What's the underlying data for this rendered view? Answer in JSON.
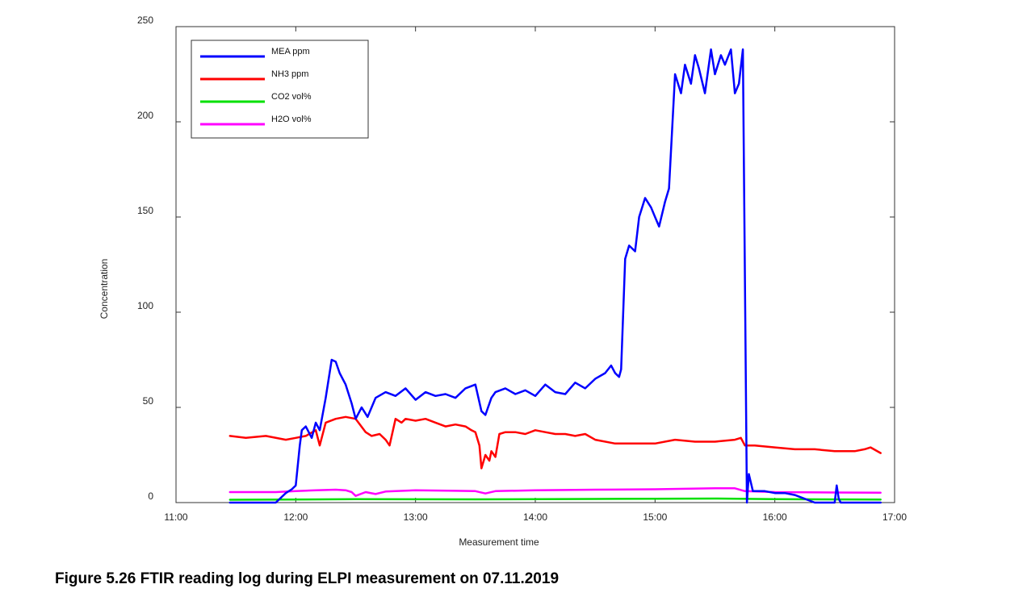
{
  "caption": "Figure 5.26 FTIR reading log during ELPI measurement on 07.11.2019",
  "chart_data": {
    "type": "line",
    "title": "",
    "xlabel": "Measurement time",
    "ylabel": "Concentration",
    "xlim": [
      "11:00",
      "17:00"
    ],
    "ylim": [
      0,
      250
    ],
    "x_ticks": [
      "11:00",
      "12:00",
      "13:00",
      "14:00",
      "15:00",
      "16:00",
      "17:00"
    ],
    "y_ticks": [
      "0",
      "50",
      "100",
      "150",
      "200",
      "250"
    ],
    "grid": false,
    "legend_position": "top-left",
    "series": [
      {
        "name": "MEA ppm",
        "color": "#0000ff",
        "x": [
          "11:27",
          "11:50",
          "11:55",
          "11:58",
          "12:00",
          "12:02",
          "12:03",
          "12:05",
          "12:08",
          "12:10",
          "12:12",
          "12:15",
          "12:18",
          "12:20",
          "12:22",
          "12:25",
          "12:28",
          "12:30",
          "12:33",
          "12:36",
          "12:40",
          "12:45",
          "12:50",
          "12:55",
          "13:00",
          "13:05",
          "13:10",
          "13:15",
          "13:20",
          "13:25",
          "13:30",
          "13:33",
          "13:35",
          "13:38",
          "13:40",
          "13:45",
          "13:50",
          "13:55",
          "14:00",
          "14:05",
          "14:10",
          "14:15",
          "14:20",
          "14:25",
          "14:30",
          "14:35",
          "14:38",
          "14:40",
          "14:42",
          "14:43",
          "14:45",
          "14:47",
          "14:50",
          "14:52",
          "14:55",
          "14:58",
          "15:00",
          "15:02",
          "15:05",
          "15:07",
          "15:10",
          "15:13",
          "15:15",
          "15:18",
          "15:20",
          "15:22",
          "15:25",
          "15:28",
          "15:30",
          "15:33",
          "15:35",
          "15:38",
          "15:40",
          "15:42",
          "15:44",
          "15:46",
          "15:47",
          "15:49",
          "15:50",
          "15:52",
          "15:55",
          "16:00",
          "16:05",
          "16:10",
          "16:15",
          "16:20",
          "16:25",
          "16:30",
          "16:31",
          "16:32",
          "16:33",
          "16:35",
          "16:40",
          "16:53"
        ],
        "y": [
          0,
          0,
          5,
          7,
          9,
          30,
          38,
          40,
          34,
          42,
          38,
          55,
          75,
          74,
          68,
          62,
          52,
          44,
          50,
          45,
          55,
          58,
          56,
          60,
          54,
          58,
          56,
          57,
          55,
          60,
          62,
          48,
          46,
          55,
          58,
          60,
          57,
          59,
          56,
          62,
          58,
          57,
          63,
          60,
          65,
          68,
          72,
          68,
          66,
          70,
          128,
          135,
          132,
          150,
          160,
          155,
          150,
          145,
          158,
          165,
          225,
          215,
          230,
          220,
          235,
          228,
          215,
          238,
          225,
          235,
          230,
          238,
          215,
          220,
          238,
          0,
          15,
          6,
          6,
          6,
          6,
          5,
          5,
          4,
          2,
          0,
          0,
          0,
          9,
          2,
          0,
          0,
          0,
          0
        ]
      },
      {
        "name": "NH3 ppm",
        "color": "#ff0000",
        "x": [
          "11:27",
          "11:35",
          "11:45",
          "11:55",
          "12:00",
          "12:05",
          "12:10",
          "12:12",
          "12:15",
          "12:20",
          "12:25",
          "12:30",
          "12:35",
          "12:38",
          "12:42",
          "12:45",
          "12:47",
          "12:50",
          "12:53",
          "12:55",
          "13:00",
          "13:05",
          "13:10",
          "13:15",
          "13:20",
          "13:25",
          "13:28",
          "13:30",
          "13:32",
          "13:33",
          "13:35",
          "13:37",
          "13:38",
          "13:40",
          "13:42",
          "13:45",
          "13:50",
          "13:55",
          "14:00",
          "14:05",
          "14:10",
          "14:15",
          "14:20",
          "14:25",
          "14:30",
          "14:40",
          "14:50",
          "15:00",
          "15:10",
          "15:20",
          "15:30",
          "15:40",
          "15:43",
          "15:45",
          "15:50",
          "16:00",
          "16:10",
          "16:20",
          "16:30",
          "16:40",
          "16:45",
          "16:48",
          "16:53"
        ],
        "y": [
          35,
          34,
          35,
          33,
          34,
          35,
          38,
          30,
          42,
          44,
          45,
          44,
          37,
          35,
          36,
          33,
          30,
          44,
          42,
          44,
          43,
          44,
          42,
          40,
          41,
          40,
          38,
          37,
          30,
          18,
          25,
          22,
          27,
          24,
          36,
          37,
          37,
          36,
          38,
          37,
          36,
          36,
          35,
          36,
          33,
          31,
          31,
          31,
          33,
          32,
          32,
          33,
          34,
          30,
          30,
          29,
          28,
          28,
          27,
          27,
          28,
          29,
          26
        ]
      },
      {
        "name": "CO2 vol%",
        "color": "#00e000",
        "x": [
          "11:27",
          "12:30",
          "13:30",
          "14:30",
          "15:00",
          "15:30",
          "16:00",
          "16:53"
        ],
        "y": [
          1.5,
          1.8,
          1.7,
          1.9,
          2.0,
          2.1,
          1.8,
          1.6
        ]
      },
      {
        "name": "H2O vol%",
        "color": "#ff00ff",
        "x": [
          "11:27",
          "11:50",
          "12:00",
          "12:10",
          "12:20",
          "12:25",
          "12:28",
          "12:30",
          "12:35",
          "12:40",
          "12:45",
          "12:50",
          "13:00",
          "13:20",
          "13:30",
          "13:35",
          "13:40",
          "14:00",
          "14:30",
          "15:00",
          "15:30",
          "15:40",
          "15:45",
          "16:00",
          "16:30",
          "16:53"
        ],
        "y": [
          5.5,
          5.5,
          6,
          6.5,
          6.8,
          6.5,
          5.5,
          3.5,
          5.5,
          4.5,
          5.8,
          6,
          6.5,
          6.2,
          6,
          4.8,
          6,
          6.5,
          6.8,
          7,
          7.5,
          7.5,
          6,
          5.5,
          5.3,
          5.2
        ]
      }
    ]
  }
}
